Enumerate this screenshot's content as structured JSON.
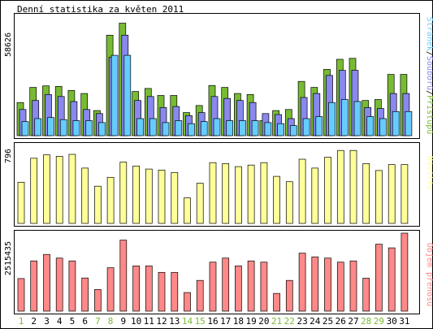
{
  "title": "Denní statistika za květen 2011",
  "colors": {
    "background": "#ffffff",
    "frame": "#000000",
    "pristupy": "#77bb33",
    "soubory": "#8888ee",
    "stranky": "#66ccff",
    "navstevy": "#ffff99",
    "objem": "#ff8888",
    "weekday_label": "#000000",
    "weekend_label": "#77bb33"
  },
  "chart_data": [
    {
      "type": "bar",
      "id": "hits",
      "max_label": "58626",
      "ymax": 58626,
      "legend": [
        "Stránek",
        "Souborů",
        "Přístupů"
      ],
      "legend_separator": "/",
      "series": [
        {
          "name": "Přístupů",
          "values": [
            16500,
            24000,
            24800,
            24500,
            22500,
            21000,
            12500,
            50000,
            56000,
            22000,
            23500,
            20000,
            20000,
            11500,
            15000,
            25000,
            24000,
            21000,
            20500,
            7500,
            12500,
            13000,
            27000,
            24000,
            33000,
            38000,
            38500,
            17500,
            18000,
            30500,
            30500
          ]
        },
        {
          "name": "Souborů",
          "values": [
            13000,
            17500,
            20500,
            19500,
            17000,
            13000,
            11000,
            39000,
            50000,
            17500,
            19500,
            14000,
            14500,
            10000,
            11500,
            19500,
            18500,
            17500,
            16500,
            11000,
            10500,
            8500,
            19000,
            21000,
            30000,
            32500,
            32500,
            14000,
            13500,
            21000,
            21000
          ]
        },
        {
          "name": "Stránek",
          "values": [
            7000,
            8500,
            9000,
            8000,
            7500,
            7500,
            6500,
            40000,
            40000,
            8500,
            8500,
            6500,
            7500,
            6000,
            7000,
            8500,
            7500,
            7500,
            7500,
            6500,
            6000,
            5000,
            8500,
            9500,
            16500,
            18000,
            17000,
            9500,
            8500,
            12000,
            12000
          ]
        }
      ]
    },
    {
      "type": "bar",
      "id": "visits",
      "max_label": "796",
      "ymax": 796,
      "legend": [
        "Návštěv"
      ],
      "series": [
        {
          "name": "Návštěv",
          "values": [
            420,
            665,
            700,
            685,
            705,
            565,
            380,
            470,
            625,
            585,
            555,
            545,
            520,
            260,
            410,
            620,
            610,
            580,
            595,
            620,
            480,
            425,
            655,
            565,
            675,
            745,
            745,
            610,
            540,
            600,
            600
          ]
        }
      ]
    },
    {
      "type": "bar",
      "id": "traffic",
      "max_label": "2515435",
      "ymax": 2515435,
      "legend": [
        "Objem přenosu"
      ],
      "series": [
        {
          "name": "Objem přenosu",
          "values": [
            1050000,
            1620000,
            1830000,
            1710000,
            1620000,
            1070000,
            700000,
            1400000,
            2290000,
            1460000,
            1460000,
            1250000,
            1250000,
            600000,
            990000,
            1580000,
            1710000,
            1460000,
            1620000,
            1580000,
            570000,
            990000,
            1870000,
            1750000,
            1710000,
            1580000,
            1620000,
            1060000,
            2160000,
            2040000,
            2515435
          ]
        }
      ]
    }
  ],
  "days": [
    "1",
    "2",
    "3",
    "4",
    "5",
    "6",
    "7",
    "8",
    "9",
    "10",
    "11",
    "12",
    "13",
    "14",
    "15",
    "16",
    "17",
    "18",
    "19",
    "20",
    "21",
    "22",
    "23",
    "24",
    "25",
    "26",
    "27",
    "28",
    "29",
    "30",
    "31"
  ],
  "weekend_days": [
    "1",
    "7",
    "8",
    "14",
    "15",
    "21",
    "22",
    "28",
    "29"
  ]
}
